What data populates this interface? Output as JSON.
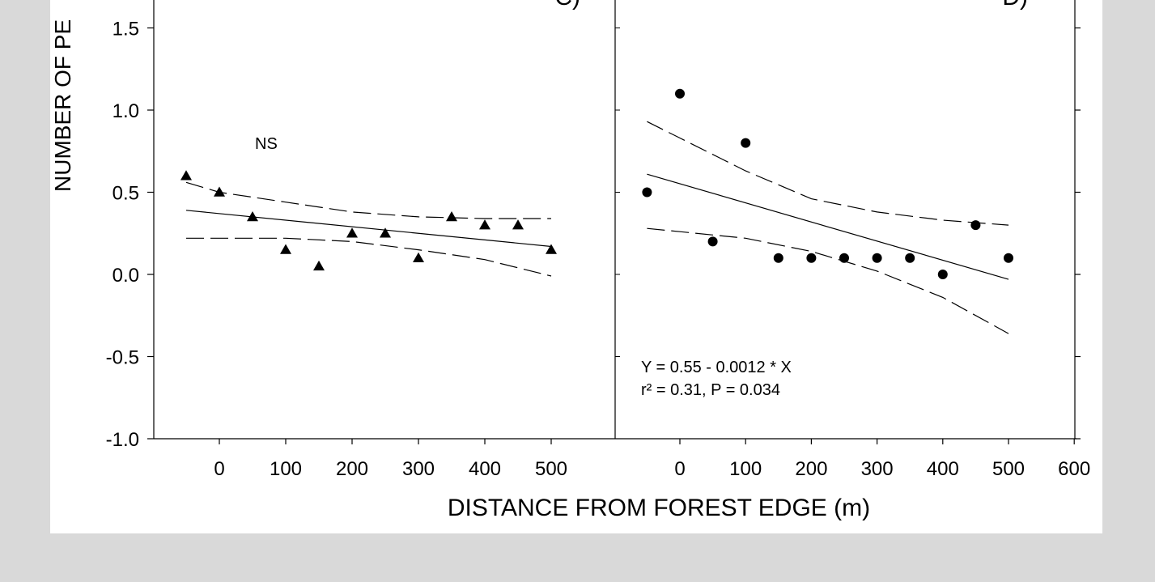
{
  "chart_data": {
    "shared": {
      "ylabel": "NUMBER OF PE",
      "xlabel": "DISTANCE FROM FOREST EDGE (m)",
      "ylim": [
        -1.0,
        1.6
      ],
      "yticks": [
        "1.5",
        "1.0",
        "0.5",
        "0.0",
        "-0.5",
        "-1.0"
      ],
      "ytick_values": [
        1.5,
        1.0,
        0.5,
        0.0,
        -0.5,
        -1.0
      ]
    },
    "panels": [
      {
        "label": "C)",
        "type": "scatter",
        "marker": "triangle",
        "xlim": [
          -50,
          650
        ],
        "xticks": [
          "0",
          "100",
          "200",
          "300",
          "400",
          "500"
        ],
        "xtick_values": [
          0,
          100,
          200,
          300,
          400,
          500
        ],
        "x": [
          -50,
          0,
          50,
          100,
          150,
          200,
          250,
          300,
          350,
          400,
          450,
          500
        ],
        "y": [
          0.6,
          0.5,
          0.35,
          0.15,
          0.05,
          0.25,
          0.25,
          0.1,
          0.35,
          0.3,
          0.3,
          0.15
        ],
        "fit": {
          "x": [
            -50,
            500
          ],
          "y": [
            0.39,
            0.17
          ]
        },
        "ci_upper": {
          "x": [
            -50,
            0,
            100,
            200,
            300,
            400,
            500
          ],
          "y": [
            0.56,
            0.5,
            0.44,
            0.38,
            0.35,
            0.34,
            0.34
          ]
        },
        "ci_lower": {
          "x": [
            -50,
            0,
            100,
            200,
            300,
            400,
            500
          ],
          "y": [
            0.22,
            0.22,
            0.22,
            0.2,
            0.15,
            0.09,
            -0.01
          ]
        },
        "annotation": "NS"
      },
      {
        "label": "D)",
        "type": "scatter",
        "marker": "circle",
        "xlim": [
          -50,
          600
        ],
        "xticks": [
          "0",
          "100",
          "200",
          "300",
          "400",
          "500",
          "600"
        ],
        "xtick_values": [
          0,
          100,
          200,
          300,
          400,
          500,
          600
        ],
        "x": [
          -50,
          0,
          50,
          100,
          150,
          200,
          250,
          300,
          350,
          400,
          450,
          500
        ],
        "y": [
          0.5,
          1.1,
          0.2,
          0.8,
          0.1,
          0.1,
          0.1,
          0.1,
          0.1,
          0.0,
          0.3,
          0.1
        ],
        "fit": {
          "x": [
            -50,
            500
          ],
          "y": [
            0.61,
            -0.03
          ]
        },
        "ci_upper": {
          "x": [
            -50,
            0,
            100,
            200,
            300,
            400,
            500
          ],
          "y": [
            0.93,
            0.83,
            0.63,
            0.46,
            0.38,
            0.33,
            0.3
          ]
        },
        "ci_lower": {
          "x": [
            -50,
            0,
            100,
            200,
            300,
            400,
            500
          ],
          "y": [
            0.28,
            0.26,
            0.22,
            0.14,
            0.02,
            -0.14,
            -0.36
          ]
        },
        "equation": "Y = 0.55 - 0.0012 * X",
        "stats_r2": "r² = 0.31, P = 0.034"
      }
    ]
  }
}
